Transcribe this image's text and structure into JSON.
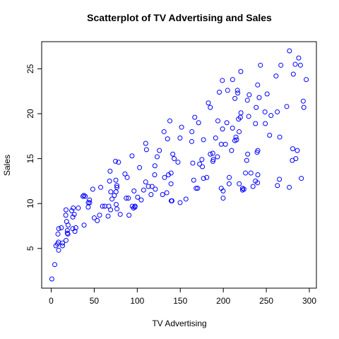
{
  "chart_data": {
    "type": "scatter",
    "title": "Scatterplot of TV Advertising and Sales",
    "x_label": "TV Advertising",
    "y_label": "Sales",
    "color": "#0000ff",
    "xlim": [
      -11.1,
      308.2
    ],
    "ylim": [
      0.58,
      28.02
    ],
    "xticks": [
      0,
      50,
      100,
      150,
      200,
      250,
      300
    ],
    "yticks": [
      5,
      10,
      15,
      20,
      25
    ],
    "series": [
      {
        "name": "Sales",
        "x": [
          230.1,
          44.5,
          17.2,
          151.5,
          180.8,
          8.7,
          57.5,
          120.2,
          8.6,
          199.8,
          66.1,
          214.7,
          23.8,
          97.5,
          204.1,
          195.4,
          67.8,
          281.4,
          69.2,
          147.3,
          218.4,
          237.4,
          13.2,
          228.3,
          62.3,
          262.9,
          142.9,
          240.1,
          248.8,
          70.6,
          292.9,
          112.9,
          97.2,
          265.6,
          95.7,
          290.7,
          266.9,
          74.7,
          43.1,
          228,
          202.5,
          177,
          293.6,
          206.9,
          25.1,
          175.1,
          89.7,
          239.9,
          227.2,
          66.9,
          199.8,
          100.4,
          216.4,
          182.6,
          262.7,
          198.9,
          7.3,
          136.2,
          210.8,
          210.7,
          53.5,
          261.3,
          239.3,
          102.7,
          131.1,
          69,
          31.5,
          139.3,
          237.4,
          216.8,
          199.1,
          109.8,
          26.8,
          129.4,
          213.4,
          16.9,
          27.5,
          120.5,
          5.4,
          116,
          76.4,
          239.8,
          75.3,
          68.4,
          213.5,
          193.2,
          76.3,
          110.7,
          88.3,
          109.8,
          134.3,
          28.6,
          217.7,
          250.9,
          107.4,
          163.3,
          197.6,
          184.9,
          289.7,
          135.2,
          222.4,
          296.4,
          280.2,
          187.9,
          238.2,
          137.9,
          25,
          90.4,
          13.1,
          255.4,
          225.8,
          241.7,
          175.7,
          209.6,
          78.2,
          75.1,
          139.2,
          76.4,
          125.7,
          19.4,
          141.3,
          18.8,
          224,
          123.1,
          229.5,
          87.2,
          7.8,
          80.2,
          220.3,
          59.6,
          0.7,
          265.2,
          8.4,
          219.8,
          36.9,
          48.3,
          25.6,
          273.7,
          43,
          184.9,
          73.4,
          193.7,
          220.5,
          104.6,
          96.2,
          140.3,
          240.1,
          243.2,
          38,
          44.7,
          280.7,
          121,
          197.6,
          171.3,
          187.8,
          4.1,
          93.9,
          149.8,
          11.7,
          131.7,
          172.5,
          85.7,
          188.4,
          163.5,
          117.2,
          234.5,
          17.9,
          206.8,
          215.4,
          284.3,
          50,
          164.5,
          19.6,
          168.4,
          222.4,
          276.9,
          248.4,
          170.2,
          276.7,
          165.6,
          156.6,
          218.5,
          56.2,
          287.6,
          253.8,
          205,
          139.5,
          191.1,
          286,
          18.7,
          39.5,
          75.5,
          17.2,
          166.8,
          149.7,
          38.2,
          94.2,
          177,
          283.6,
          232.1
        ],
        "values": [
          22.1,
          10.4,
          9.3,
          18.5,
          12.9,
          7.2,
          11.8,
          13.2,
          4.8,
          10.6,
          8.6,
          17.4,
          9.2,
          9.7,
          19,
          22.4,
          12.5,
          24.4,
          11.3,
          14.6,
          18,
          12.5,
          5.6,
          15.5,
          9.7,
          12,
          15,
          15.9,
          18.9,
          10.5,
          21.4,
          11.9,
          9.6,
          17.4,
          9.5,
          12.8,
          25.4,
          14.7,
          10.1,
          21.5,
          16.6,
          17.1,
          20.7,
          12.9,
          8.5,
          14.9,
          10.6,
          23.2,
          14.8,
          9.7,
          11.4,
          10.7,
          22.6,
          21.2,
          20.2,
          23.7,
          5.5,
          13.2,
          23.8,
          18.4,
          8.1,
          24.2,
          15.7,
          14,
          18,
          9.3,
          9.5,
          13.4,
          18.9,
          22.3,
          18.3,
          12.4,
          8.8,
          11,
          17,
          8.7,
          6.9,
          14.2,
          5.3,
          11,
          11.8,
          12.3,
          11.3,
          13.6,
          21.7,
          15.2,
          12,
          16,
          12.9,
          16.7,
          11.2,
          7.3,
          19.4,
          22.2,
          11.5,
          16.9,
          11.7,
          15.5,
          25.4,
          17.2,
          11.7,
          23.8,
          14.8,
          14.7,
          20.7,
          19.2,
          7.2,
          8.7,
          5.3,
          19.8,
          13.4,
          21.8,
          14.1,
          15.9,
          14.6,
          12.6,
          12.2,
          9.4,
          15.9,
          6.6,
          15.5,
          7,
          11.6,
          15.2,
          19.7,
          10.6,
          6.6,
          8.8,
          24.7,
          9.7,
          1.6,
          12.7,
          5.7,
          19.6,
          10.8,
          11.6,
          9.5,
          20.8,
          9.6,
          20.7,
          10.9,
          19.2,
          20.1,
          10.4,
          11.4,
          10.3,
          13.2,
          25.4,
          10.9,
          10.1,
          16.1,
          11.6,
          16.6,
          19,
          15.6,
          3.2,
          15.3,
          10.1,
          7.3,
          12.9,
          14.4,
          13.3,
          14.9,
          18,
          11.9,
          11.9,
          8,
          12.2,
          17.1,
          15,
          8.4,
          14.5,
          7.6,
          11.7,
          11.5,
          27,
          20.2,
          11.7,
          11.8,
          12.6,
          10.5,
          12.2,
          8.7,
          26.2,
          17.6,
          22.6,
          10.3,
          17.3,
          15.9,
          6.7,
          10.8,
          9.9,
          5.9,
          19.6,
          17.3,
          7.6,
          9.7,
          12.8,
          25.5,
          13.4
        ]
      }
    ]
  }
}
